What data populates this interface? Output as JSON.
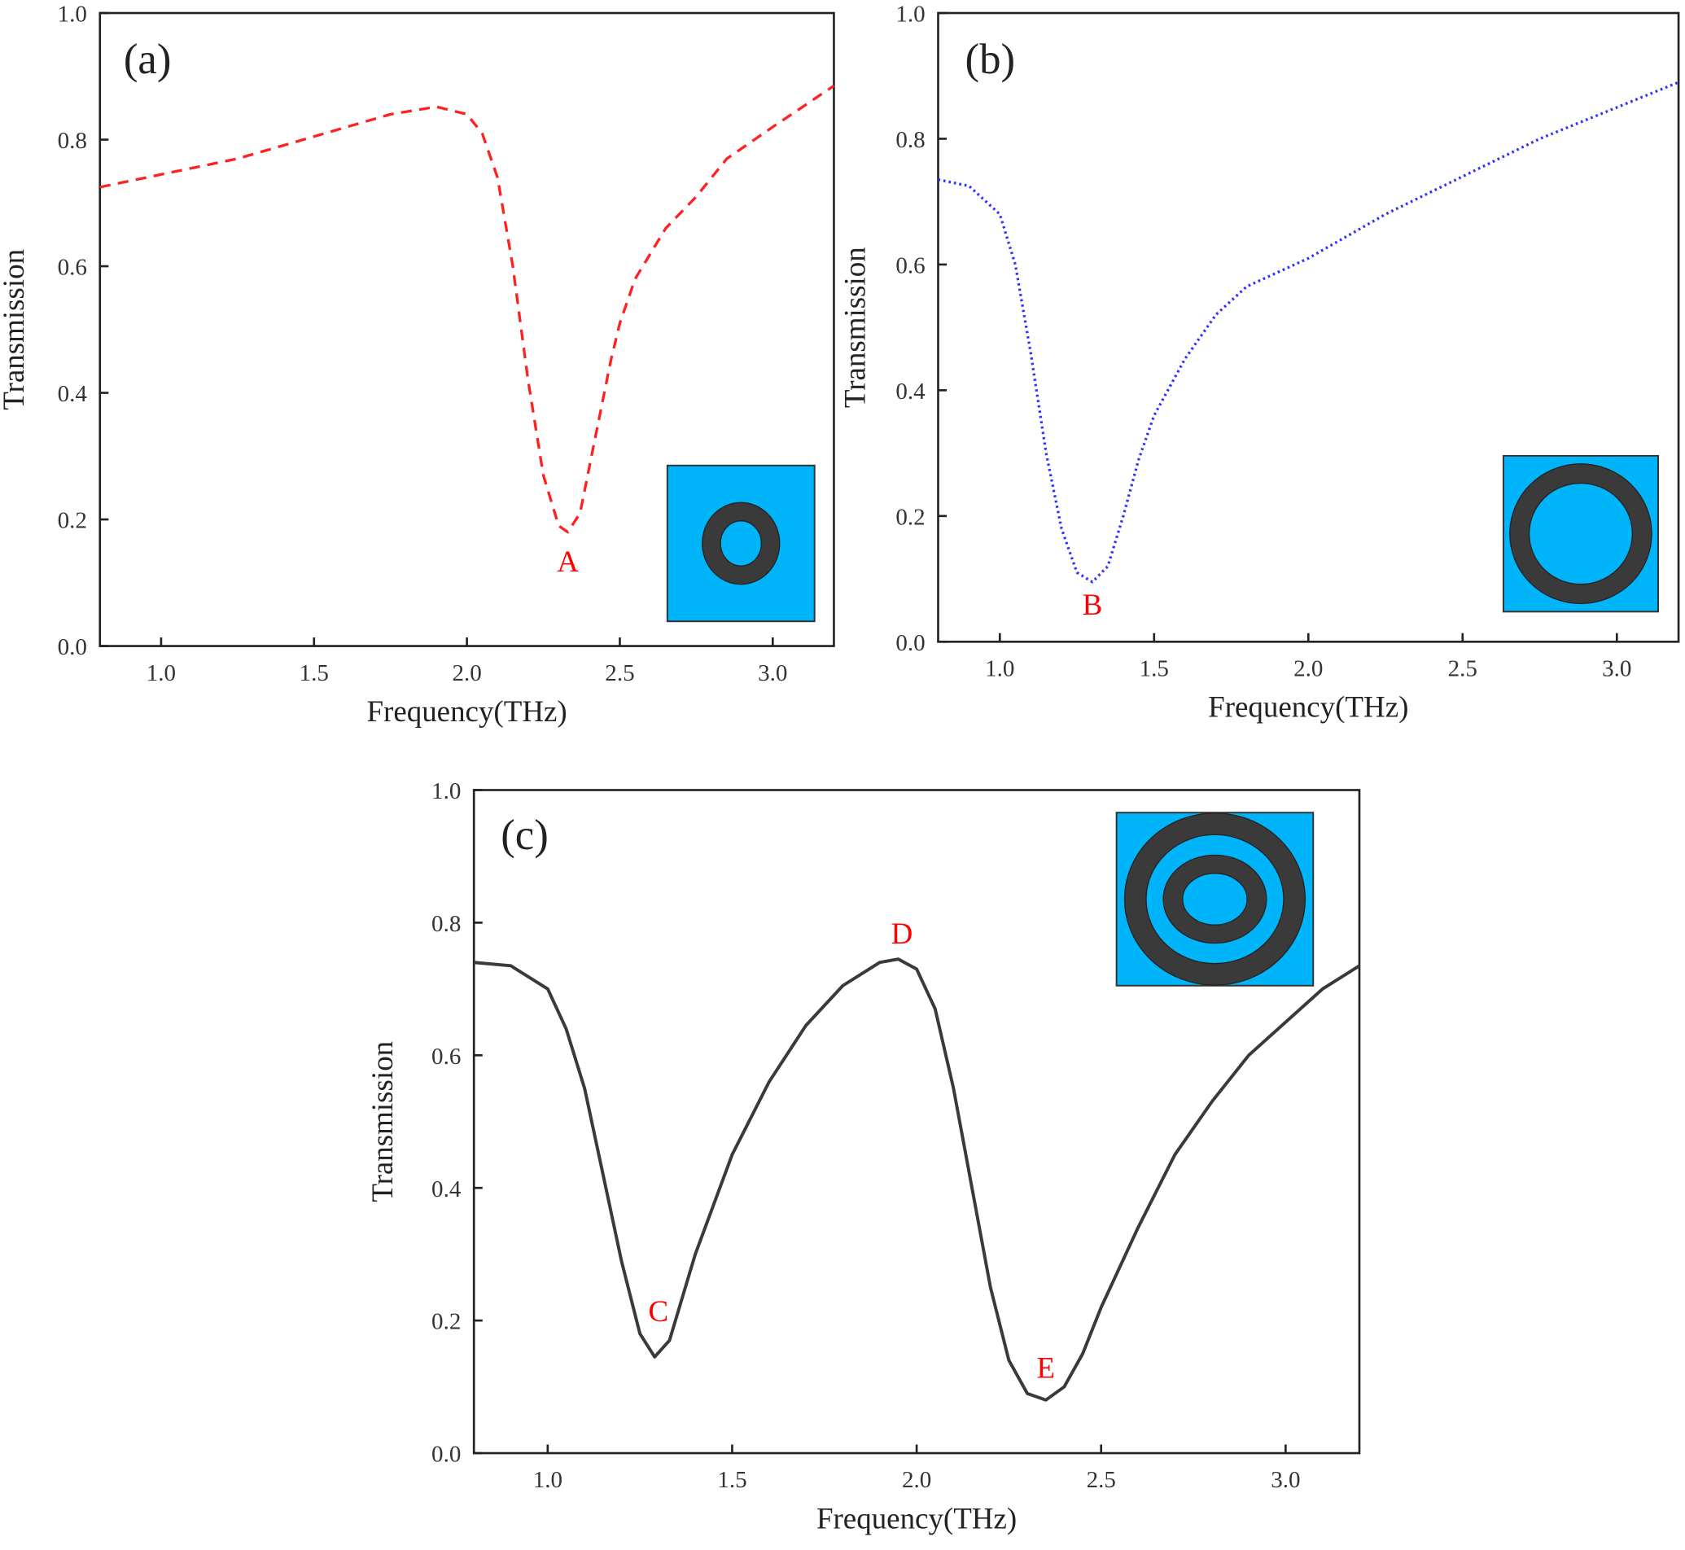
{
  "chart_data": [
    {
      "type": "line",
      "panel_label": "(a)",
      "xlabel": "Frequency(THz)",
      "ylabel": "Transmission",
      "xlim": [
        0.8,
        3.2
      ],
      "ylim": [
        0.0,
        1.0
      ],
      "xticks": [
        "1.0",
        "1.5",
        "2.0",
        "2.5",
        "3.0"
      ],
      "yticks": [
        "0.0",
        "0.2",
        "0.4",
        "0.6",
        "0.8",
        "1.0"
      ],
      "series": [
        {
          "name": "single small ring",
          "color": "#ff2020",
          "style": "dashed",
          "x": [
            0.8,
            1.0,
            1.25,
            1.5,
            1.75,
            1.9,
            2.0,
            2.05,
            2.1,
            2.15,
            2.2,
            2.25,
            2.3,
            2.33,
            2.37,
            2.42,
            2.47,
            2.5,
            2.55,
            2.65,
            2.75,
            2.85,
            3.0,
            3.2
          ],
          "y": [
            0.725,
            0.745,
            0.77,
            0.805,
            0.84,
            0.852,
            0.84,
            0.81,
            0.74,
            0.6,
            0.42,
            0.27,
            0.19,
            0.18,
            0.21,
            0.33,
            0.45,
            0.51,
            0.58,
            0.66,
            0.71,
            0.77,
            0.82,
            0.885
          ]
        }
      ],
      "annotations": [
        {
          "text": "A",
          "x": 2.33,
          "y": 0.135
        }
      ],
      "inset": "small-ring"
    },
    {
      "type": "line",
      "panel_label": "(b)",
      "xlabel": "Frequency(THz)",
      "ylabel": "Transmission",
      "xlim": [
        0.8,
        3.2
      ],
      "ylim": [
        0.0,
        1.0
      ],
      "xticks": [
        "1.0",
        "1.5",
        "2.0",
        "2.5",
        "3.0"
      ],
      "yticks": [
        "0.0",
        "0.2",
        "0.4",
        "0.6",
        "0.8",
        "1.0"
      ],
      "series": [
        {
          "name": "single large ring",
          "color": "#3030ff",
          "style": "dotted",
          "x": [
            0.8,
            0.9,
            1.0,
            1.05,
            1.1,
            1.15,
            1.2,
            1.25,
            1.3,
            1.35,
            1.4,
            1.45,
            1.5,
            1.6,
            1.7,
            1.8,
            2.0,
            2.25,
            2.5,
            2.75,
            3.0,
            3.2
          ],
          "y": [
            0.735,
            0.725,
            0.68,
            0.6,
            0.46,
            0.3,
            0.18,
            0.11,
            0.095,
            0.12,
            0.2,
            0.29,
            0.36,
            0.45,
            0.52,
            0.565,
            0.61,
            0.68,
            0.74,
            0.8,
            0.85,
            0.89
          ]
        }
      ],
      "annotations": [
        {
          "text": "B",
          "x": 1.3,
          "y": 0.06
        }
      ],
      "inset": "large-ring"
    },
    {
      "type": "line",
      "panel_label": "(c)",
      "xlabel": "Frequency(THz)",
      "ylabel": "Transmission",
      "xlim": [
        0.8,
        3.2
      ],
      "ylim": [
        0.0,
        1.0
      ],
      "xticks": [
        "1.0",
        "1.5",
        "2.0",
        "2.5",
        "3.0"
      ],
      "yticks": [
        "0.0",
        "0.2",
        "0.4",
        "0.6",
        "0.8",
        "1.0"
      ],
      "series": [
        {
          "name": "double ring",
          "color": "#3a3a3a",
          "style": "solid",
          "x": [
            0.8,
            0.9,
            1.0,
            1.05,
            1.1,
            1.15,
            1.2,
            1.25,
            1.29,
            1.33,
            1.4,
            1.5,
            1.6,
            1.7,
            1.8,
            1.9,
            1.95,
            2.0,
            2.05,
            2.1,
            2.15,
            2.2,
            2.25,
            2.3,
            2.35,
            2.4,
            2.45,
            2.5,
            2.6,
            2.7,
            2.8,
            2.9,
            3.0,
            3.1,
            3.2
          ],
          "y": [
            0.74,
            0.735,
            0.7,
            0.64,
            0.55,
            0.42,
            0.29,
            0.18,
            0.145,
            0.17,
            0.3,
            0.45,
            0.56,
            0.645,
            0.705,
            0.74,
            0.745,
            0.73,
            0.67,
            0.55,
            0.4,
            0.25,
            0.14,
            0.09,
            0.08,
            0.1,
            0.15,
            0.22,
            0.34,
            0.45,
            0.53,
            0.6,
            0.65,
            0.7,
            0.735
          ]
        }
      ],
      "annotations": [
        {
          "text": "C",
          "x": 1.3,
          "y": 0.215
        },
        {
          "text": "D",
          "x": 1.96,
          "y": 0.785
        },
        {
          "text": "E",
          "x": 2.35,
          "y": 0.13
        }
      ],
      "inset": "double-ring"
    }
  ]
}
